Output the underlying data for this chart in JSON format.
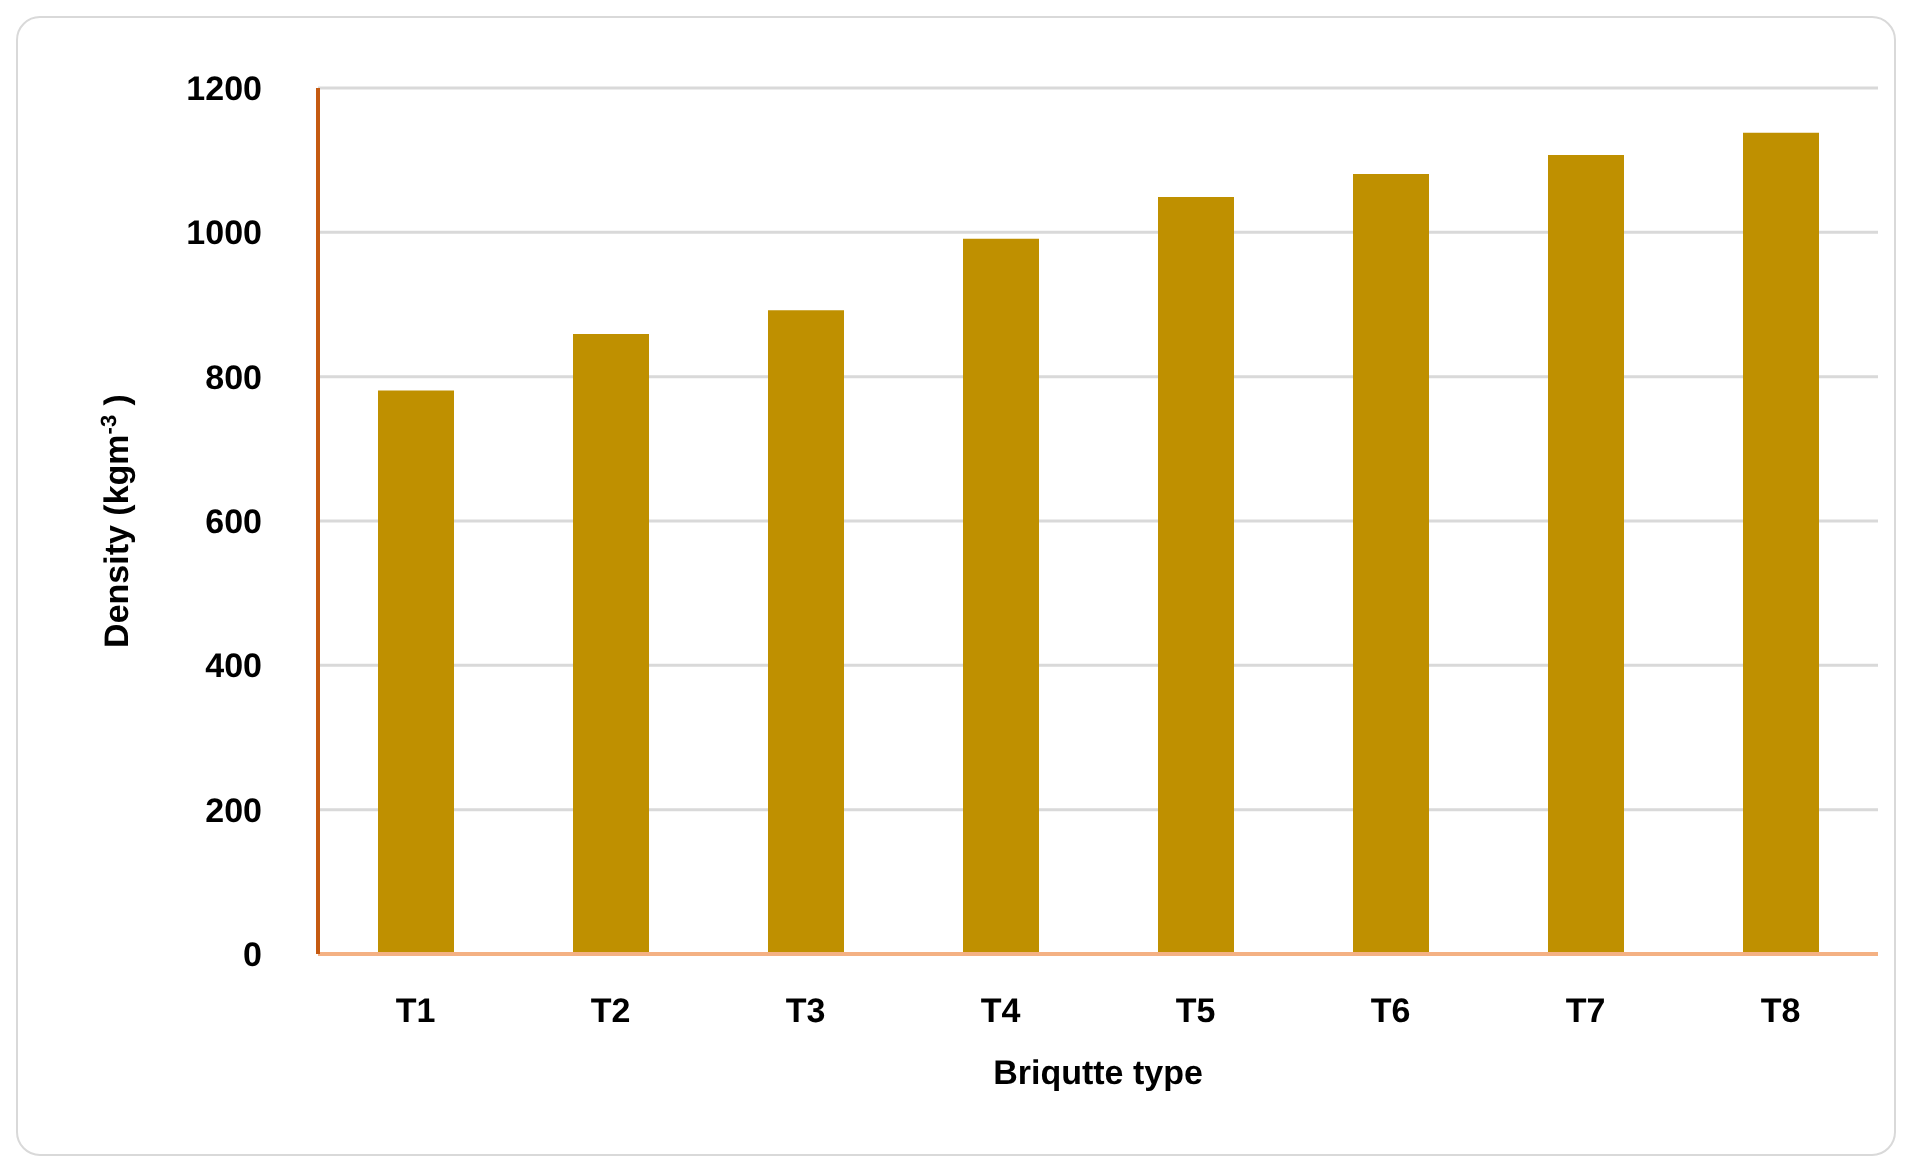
{
  "chart_data": {
    "type": "bar",
    "xlabel": "Briqutte type",
    "ylabel": "Density (kgm$^{-3}$ )",
    "categories": [
      "T1",
      "T2",
      "T3",
      "T4",
      "T5",
      "T6",
      "T7",
      "T8"
    ],
    "values": [
      781,
      859,
      892,
      991,
      1049,
      1081,
      1107,
      1138
    ],
    "color": "#bf9000",
    "ylim": [
      0,
      1200
    ],
    "yticks": [
      0,
      200,
      400,
      600,
      800,
      1000,
      1200
    ],
    "grid": "y"
  }
}
